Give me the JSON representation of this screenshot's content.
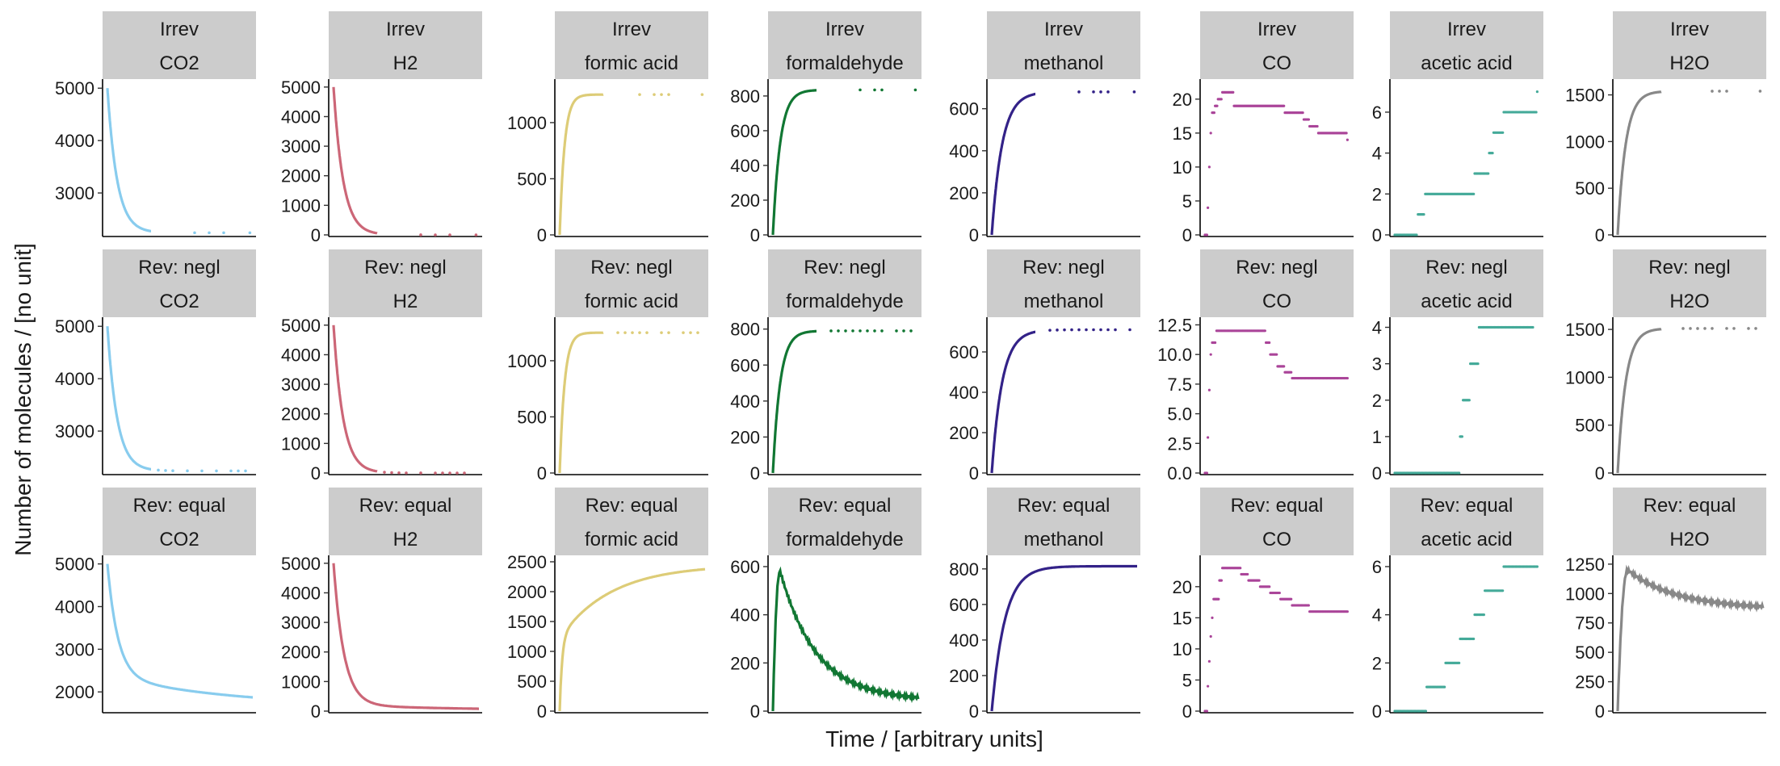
{
  "figure": {
    "xlabel": "Time / [arbitrary units]",
    "ylabel": "Number of molecules / [no unit]"
  },
  "chart_data": {
    "type": "scatter",
    "title": "",
    "xlabel": "Time / [arbitrary units]",
    "ylabel": "Number of molecules / [no unit]",
    "rows": [
      "Irrev",
      "Rev: negl",
      "Rev: equal"
    ],
    "columns": [
      "CO2",
      "H2",
      "formic acid",
      "formaldehyde",
      "methanol",
      "CO",
      "acetic acid",
      "H2O"
    ],
    "colors": {
      "CO2": "#88ccee",
      "H2": "#cc6677",
      "formic acid": "#ddcc77",
      "formaldehyde": "#117733",
      "methanol": "#332288",
      "CO": "#aa4499",
      "acetic acid": "#44aa99",
      "H2O": "#888888"
    },
    "strip_background": "#cccccc",
    "grid": false,
    "legend": "none",
    "panels": [
      {
        "row": "Irrev",
        "species": "CO2",
        "shape": "decay",
        "start": 5000,
        "final": 2240,
        "k": 15,
        "ylim": [
          2200,
          5050
        ],
        "yticks": [
          3000,
          4000,
          5000
        ],
        "ytick_labels": [
          "3000",
          "4000",
          "5000"
        ],
        "sparse": [
          0.6,
          0.7,
          0.8,
          0.98
        ]
      },
      {
        "row": "Irrev",
        "species": "H2",
        "shape": "decay",
        "start": 5000,
        "final": 0,
        "k": 15,
        "ylim": [
          0,
          5050
        ],
        "yticks": [
          0,
          1000,
          2000,
          3000,
          4000,
          5000
        ],
        "ytick_labels": [
          "0",
          "1000",
          "2000",
          "3000",
          "4000",
          "5000"
        ],
        "sparse": [
          0.6,
          0.7,
          0.8,
          0.98
        ]
      },
      {
        "row": "Irrev",
        "species": "formic acid",
        "shape": "rise",
        "start": 0,
        "final": 1250,
        "k": 30,
        "ylim": [
          0,
          1330
        ],
        "yticks": [
          0,
          500,
          1000
        ],
        "ytick_labels": [
          "0",
          "500",
          "1000"
        ],
        "sparse": [
          0.55,
          0.65,
          0.7,
          0.75,
          0.98
        ]
      },
      {
        "row": "Irrev",
        "species": "formaldehyde",
        "shape": "rise",
        "start": 0,
        "final": 835,
        "k": 20,
        "ylim": [
          0,
          860
        ],
        "yticks": [
          0,
          200,
          400,
          600,
          800
        ],
        "ytick_labels": [
          "0",
          "200",
          "400",
          "600",
          "800"
        ],
        "sparse": [
          0.6,
          0.7,
          0.75,
          0.98
        ]
      },
      {
        "row": "Irrev",
        "species": "methanol",
        "shape": "rise",
        "start": 0,
        "final": 680,
        "k": 14,
        "ylim": [
          0,
          710
        ],
        "yticks": [
          0,
          200,
          400,
          600
        ],
        "ytick_labels": [
          "0",
          "200",
          "400",
          "600"
        ],
        "sparse": [
          0.6,
          0.7,
          0.75,
          0.8,
          0.98
        ]
      },
      {
        "row": "Irrev",
        "species": "CO",
        "shape": "steps",
        "points": [
          [
            0.0,
            0
          ],
          [
            0.02,
            4
          ],
          [
            0.03,
            10
          ],
          [
            0.04,
            15
          ],
          [
            0.05,
            18
          ],
          [
            0.07,
            19
          ],
          [
            0.09,
            20
          ],
          [
            0.12,
            21
          ],
          [
            0.18,
            21
          ],
          [
            0.2,
            19
          ],
          [
            0.28,
            19
          ],
          [
            0.55,
            18
          ],
          [
            0.68,
            17
          ],
          [
            0.72,
            16
          ],
          [
            0.78,
            15
          ],
          [
            0.98,
            14
          ]
        ],
        "ylim": [
          0,
          22
        ],
        "yticks": [
          0,
          5,
          10,
          15,
          20
        ],
        "ytick_labels": [
          "0",
          "5",
          "10",
          "15",
          "20"
        ]
      },
      {
        "row": "Irrev",
        "species": "acetic acid",
        "shape": "steps",
        "points": [
          [
            0.0,
            0
          ],
          [
            0.15,
            0
          ],
          [
            0.16,
            1
          ],
          [
            0.2,
            1
          ],
          [
            0.21,
            2
          ],
          [
            0.3,
            2
          ],
          [
            0.55,
            3
          ],
          [
            0.65,
            4
          ],
          [
            0.68,
            5
          ],
          [
            0.75,
            6
          ],
          [
            0.98,
            7
          ]
        ],
        "ylim": [
          0,
          7.3
        ],
        "yticks": [
          0,
          2,
          4,
          6
        ],
        "ytick_labels": [
          "0",
          "2",
          "4",
          "6"
        ]
      },
      {
        "row": "Irrev",
        "species": "H2O",
        "shape": "rise",
        "start": 0,
        "final": 1540,
        "k": 18,
        "ylim": [
          0,
          1600
        ],
        "yticks": [
          0,
          500,
          1000,
          1500
        ],
        "ytick_labels": [
          "0",
          "500",
          "1000",
          "1500"
        ],
        "sparse": [
          0.65,
          0.7,
          0.75,
          0.98
        ]
      },
      {
        "row": "Rev: negl",
        "species": "CO2",
        "shape": "decay",
        "start": 5000,
        "final": 2240,
        "k": 15,
        "ylim": [
          2200,
          5050
        ],
        "yticks": [
          3000,
          4000,
          5000
        ],
        "ytick_labels": [
          "3000",
          "4000",
          "5000"
        ],
        "sparse": [
          0.35,
          0.4,
          0.45,
          0.55,
          0.65,
          0.75,
          0.85,
          0.9,
          0.95
        ]
      },
      {
        "row": "Rev: negl",
        "species": "H2",
        "shape": "decay",
        "start": 5000,
        "final": 0,
        "k": 15,
        "ylim": [
          0,
          5050
        ],
        "yticks": [
          0,
          1000,
          2000,
          3000,
          4000,
          5000
        ],
        "ytick_labels": [
          "0",
          "1000",
          "2000",
          "3000",
          "4000",
          "5000"
        ],
        "sparse": [
          0.35,
          0.4,
          0.45,
          0.5,
          0.6,
          0.7,
          0.75,
          0.8,
          0.85,
          0.9
        ]
      },
      {
        "row": "Rev: negl",
        "species": "formic acid",
        "shape": "rise",
        "start": 0,
        "final": 1250,
        "k": 30,
        "ylim": [
          0,
          1330
        ],
        "yticks": [
          0,
          500,
          1000
        ],
        "ytick_labels": [
          "0",
          "500",
          "1000"
        ],
        "sparse": [
          0.4,
          0.45,
          0.5,
          0.55,
          0.6,
          0.7,
          0.75,
          0.85,
          0.9,
          0.95
        ]
      },
      {
        "row": "Rev: negl",
        "species": "formaldehyde",
        "shape": "rise",
        "start": 0,
        "final": 790,
        "k": 20,
        "ylim": [
          0,
          830
        ],
        "yticks": [
          0,
          200,
          400,
          600,
          800
        ],
        "ytick_labels": [
          "0",
          "200",
          "400",
          "600",
          "800"
        ],
        "sparse": [
          0.4,
          0.45,
          0.5,
          0.55,
          0.6,
          0.65,
          0.7,
          0.75,
          0.85,
          0.9,
          0.95
        ]
      },
      {
        "row": "Rev: negl",
        "species": "methanol",
        "shape": "rise",
        "start": 0,
        "final": 710,
        "k": 14,
        "ylim": [
          0,
          740
        ],
        "yticks": [
          0,
          200,
          400,
          600
        ],
        "ytick_labels": [
          "0",
          "200",
          "400",
          "600"
        ],
        "sparse": [
          0.4,
          0.45,
          0.5,
          0.55,
          0.6,
          0.65,
          0.7,
          0.75,
          0.8,
          0.85,
          0.95
        ]
      },
      {
        "row": "Rev: negl",
        "species": "CO",
        "shape": "steps",
        "points": [
          [
            0.0,
            0
          ],
          [
            0.02,
            3
          ],
          [
            0.03,
            7
          ],
          [
            0.04,
            10
          ],
          [
            0.05,
            11
          ],
          [
            0.07,
            11
          ],
          [
            0.08,
            12
          ],
          [
            0.35,
            12
          ],
          [
            0.42,
            11
          ],
          [
            0.45,
            10
          ],
          [
            0.5,
            9
          ],
          [
            0.55,
            8.5
          ],
          [
            0.6,
            8
          ],
          [
            0.65,
            8
          ],
          [
            0.8,
            8
          ],
          [
            0.9,
            8
          ],
          [
            0.98,
            8
          ]
        ],
        "ylim": [
          0,
          12.6
        ],
        "yticks": [
          0,
          2.5,
          5,
          7.5,
          10,
          12.5
        ],
        "ytick_labels": [
          "0.0",
          "2.5",
          "5.0",
          "7.5",
          "10.0",
          "12.5"
        ]
      },
      {
        "row": "Rev: negl",
        "species": "acetic acid",
        "shape": "steps",
        "points": [
          [
            0.0,
            0
          ],
          [
            0.4,
            0
          ],
          [
            0.45,
            1
          ],
          [
            0.47,
            2
          ],
          [
            0.52,
            3
          ],
          [
            0.58,
            4
          ],
          [
            0.7,
            4
          ],
          [
            0.75,
            4
          ],
          [
            0.8,
            4
          ],
          [
            0.95,
            4
          ]
        ],
        "ylim": [
          0,
          4.1
        ],
        "yticks": [
          0,
          1,
          2,
          3,
          4
        ],
        "ytick_labels": [
          "0",
          "1",
          "2",
          "3",
          "4"
        ]
      },
      {
        "row": "Rev: negl",
        "species": "H2O",
        "shape": "rise",
        "start": 0,
        "final": 1510,
        "k": 18,
        "ylim": [
          0,
          1560
        ],
        "yticks": [
          0,
          500,
          1000,
          1500
        ],
        "ytick_labels": [
          "0",
          "500",
          "1000",
          "1500"
        ],
        "sparse": [
          0.45,
          0.5,
          0.55,
          0.6,
          0.65,
          0.75,
          0.8,
          0.9,
          0.95
        ]
      },
      {
        "row": "Rev: equal",
        "species": "CO2",
        "shape": "decay2",
        "start": 5000,
        "final": 1650,
        "k": 14,
        "k2": 1.2,
        "split": 0.78,
        "ylim": [
          1550,
          5050
        ],
        "yticks": [
          2000,
          3000,
          4000,
          5000
        ],
        "ytick_labels": [
          "2000",
          "3000",
          "4000",
          "5000"
        ]
      },
      {
        "row": "Rev: equal",
        "species": "H2",
        "shape": "decay2",
        "start": 5000,
        "final": 20,
        "k": 14,
        "k2": 1.2,
        "split": 0.96,
        "ylim": [
          0,
          5050
        ],
        "yticks": [
          0,
          1000,
          2000,
          3000,
          4000,
          5000
        ],
        "ytick_labels": [
          "0",
          "1000",
          "2000",
          "3000",
          "4000",
          "5000"
        ]
      },
      {
        "row": "Rev: equal",
        "species": "formic acid",
        "shape": "rise2",
        "start": 0,
        "final": 2450,
        "k": 60,
        "k2": 2.8,
        "split": 0.5,
        "ylim": [
          0,
          2500
        ],
        "yticks": [
          0,
          500,
          1000,
          1500,
          2000,
          2500
        ],
        "ytick_labels": [
          "0",
          "500",
          "1000",
          "1500",
          "2000",
          "2500"
        ]
      },
      {
        "row": "Rev: equal",
        "species": "formaldehyde",
        "shape": "peak",
        "peak": 580,
        "tpeak": 0.05,
        "final": 45,
        "k": 4,
        "ylim": [
          0,
          620
        ],
        "yticks": [
          0,
          200,
          400,
          600
        ],
        "ytick_labels": [
          "0",
          "200",
          "400",
          "600"
        ]
      },
      {
        "row": "Rev: equal",
        "species": "methanol",
        "shape": "rise",
        "start": 0,
        "final": 815,
        "k": 11,
        "ylim": [
          0,
          840
        ],
        "yticks": [
          0,
          200,
          400,
          600,
          800
        ],
        "ytick_labels": [
          "0",
          "200",
          "400",
          "600",
          "800"
        ]
      },
      {
        "row": "Rev: equal",
        "species": "CO",
        "shape": "steps",
        "points": [
          [
            0.0,
            0
          ],
          [
            0.02,
            4
          ],
          [
            0.03,
            8
          ],
          [
            0.04,
            12
          ],
          [
            0.05,
            15
          ],
          [
            0.06,
            18
          ],
          [
            0.1,
            21
          ],
          [
            0.12,
            23
          ],
          [
            0.2,
            23
          ],
          [
            0.25,
            22
          ],
          [
            0.3,
            21
          ],
          [
            0.38,
            20
          ],
          [
            0.45,
            19
          ],
          [
            0.52,
            18
          ],
          [
            0.6,
            17
          ],
          [
            0.72,
            16
          ],
          [
            0.85,
            16
          ],
          [
            0.98,
            16
          ]
        ],
        "ylim": [
          0,
          24
        ],
        "yticks": [
          0,
          5,
          10,
          15,
          20
        ],
        "ytick_labels": [
          "0",
          "5",
          "10",
          "15",
          "20"
        ]
      },
      {
        "row": "Rev: equal",
        "species": "acetic acid",
        "shape": "steps",
        "points": [
          [
            0.0,
            0
          ],
          [
            0.2,
            0
          ],
          [
            0.22,
            1
          ],
          [
            0.32,
            1
          ],
          [
            0.35,
            2
          ],
          [
            0.42,
            2
          ],
          [
            0.45,
            3
          ],
          [
            0.52,
            3
          ],
          [
            0.55,
            4
          ],
          [
            0.6,
            4
          ],
          [
            0.62,
            5
          ],
          [
            0.72,
            5
          ],
          [
            0.75,
            6
          ],
          [
            0.98,
            6
          ]
        ],
        "ylim": [
          0,
          6.2
        ],
        "yticks": [
          0,
          2,
          4,
          6
        ],
        "ytick_labels": [
          "0",
          "2",
          "4",
          "6"
        ]
      },
      {
        "row": "Rev: equal",
        "species": "H2O",
        "shape": "peak",
        "peak": 1200,
        "tpeak": 0.07,
        "final": 870,
        "k": 3,
        "ylim": [
          0,
          1270
        ],
        "yticks": [
          0,
          250,
          500,
          750,
          1000,
          1250
        ],
        "ytick_labels": [
          "0",
          "250",
          "500",
          "750",
          "1000",
          "1250"
        ]
      }
    ]
  }
}
